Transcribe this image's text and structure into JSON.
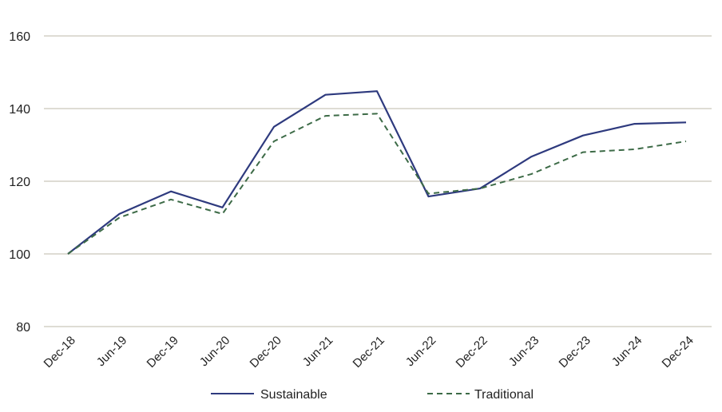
{
  "chart_data": {
    "type": "line",
    "title": "",
    "xlabel": "",
    "ylabel": "",
    "categories": [
      "Dec-18",
      "Jun-19",
      "Dec-19",
      "Jun-20",
      "Dec-20",
      "Jun-21",
      "Dec-21",
      "Jun-22",
      "Dec-22",
      "Jun-23",
      "Dec-23",
      "Jun-24",
      "Dec-24"
    ],
    "yticks": [
      "80",
      "100",
      "120",
      "140",
      "160"
    ],
    "ylim": [
      80,
      160
    ],
    "grid": true,
    "legend_position": "bottom-center",
    "series": [
      {
        "name": "Sustainable",
        "color": "#2e3a7e",
        "dash": "solid",
        "values": [
          100,
          111,
          117.2,
          112.8,
          135,
          143.8,
          144.8,
          115.8,
          118,
          126.8,
          132.6,
          135.8,
          136.2
        ]
      },
      {
        "name": "Traditional",
        "color": "#3d6b47",
        "dash": "dashed",
        "values": [
          100,
          110,
          115,
          111,
          131,
          138,
          138.6,
          116.6,
          118,
          122,
          128,
          128.8,
          131
        ]
      }
    ]
  }
}
